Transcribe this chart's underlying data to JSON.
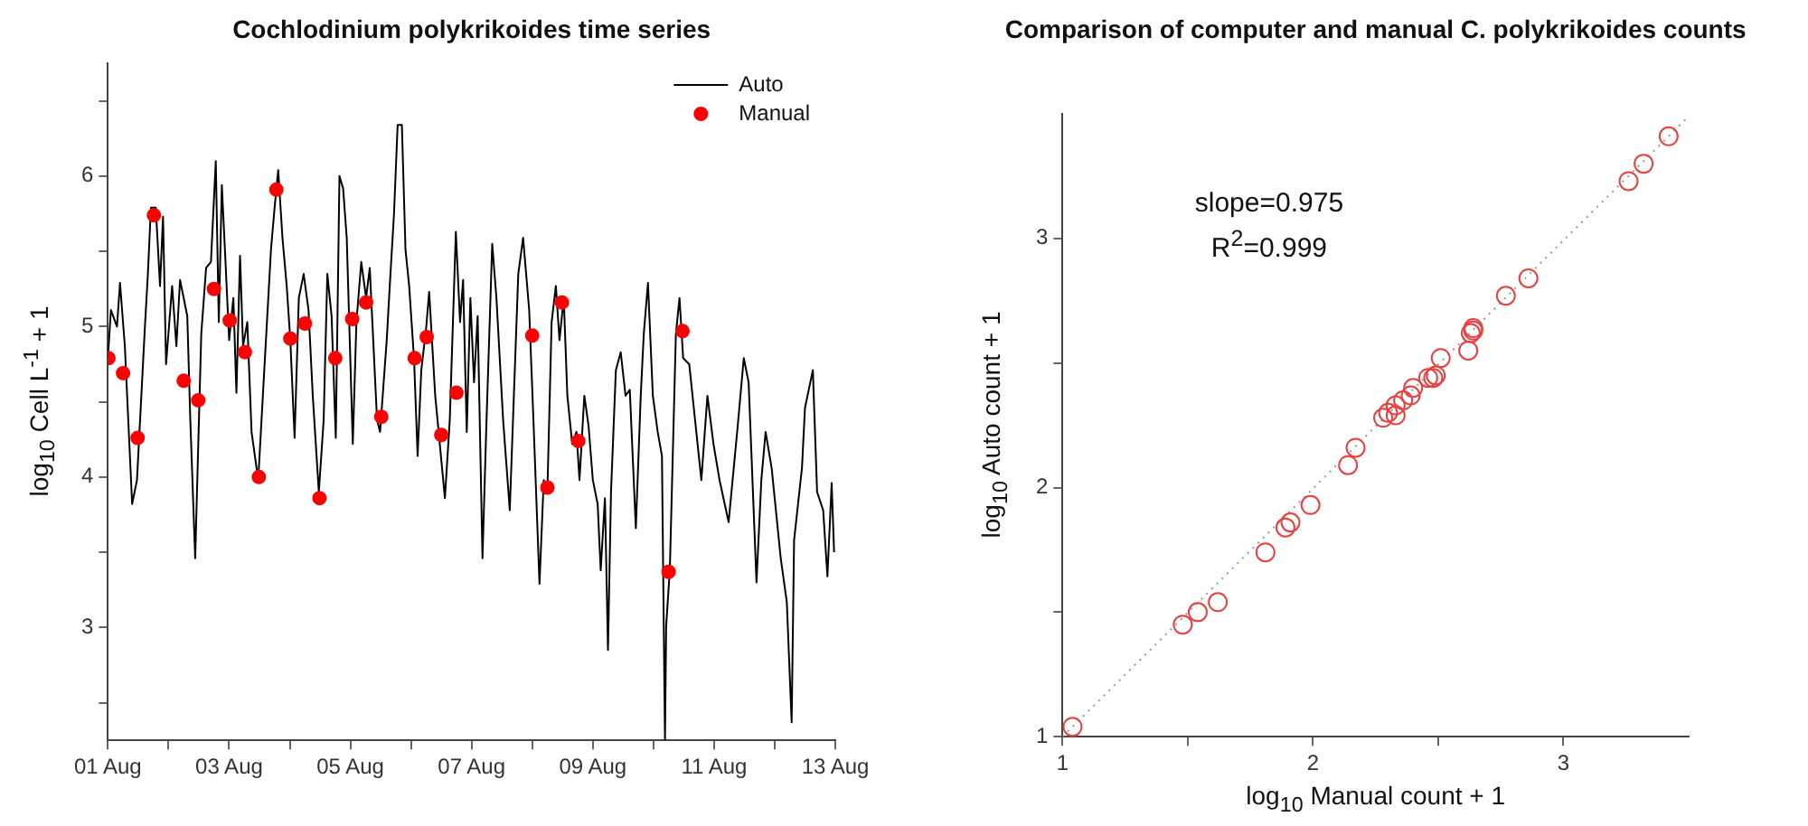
{
  "chart_data": [
    {
      "type": "line",
      "title": "Cochlodinium polykrikoides time series",
      "ylabel": "log$_{10}$ Cell L$^{-1}$ + 1",
      "xlim": [
        "--08-01",
        "--08-13"
      ],
      "xticks": [
        {
          "value": "--08-01",
          "label": "01 Aug"
        },
        {
          "value": "--08-02",
          "label": null
        },
        {
          "value": "--08-03",
          "label": "03 Aug"
        },
        {
          "value": "--08-04",
          "label": null
        },
        {
          "value": "--08-05",
          "label": "05 Aug"
        },
        {
          "value": "--08-06",
          "label": null
        },
        {
          "value": "--08-07",
          "label": "07 Aug"
        },
        {
          "value": "--08-08",
          "label": null
        },
        {
          "value": "--08-09",
          "label": "09 Aug"
        },
        {
          "value": "--08-10",
          "label": null
        },
        {
          "value": "--08-11",
          "label": "11 Aug"
        },
        {
          "value": "--08-12",
          "label": null
        },
        {
          "value": "--08-13",
          "label": "13 Aug"
        }
      ],
      "ylim": [
        2.25,
        6.75
      ],
      "yticks": [
        {
          "value": 2.5,
          "label": null
        },
        3,
        {
          "value": 3.5,
          "label": null
        },
        4,
        {
          "value": 4.5,
          "label": null
        },
        5,
        {
          "value": 5.5,
          "label": null
        },
        6,
        {
          "value": 6.5,
          "label": null
        }
      ],
      "grid": false,
      "legend": "top right",
      "series": [
        {
          "name": "Auto",
          "color": "#000000",
          "marker": "none",
          "x": [
            "--08-01T00:00",
            "--08-01T01:12",
            "--08-01T03:36",
            "--08-01T04:48",
            "--08-01T06:43",
            "--08-01T09:36",
            "--08-01T11:31",
            "--08-01T14:38",
            "--08-01T15:50",
            "--08-01T17:02",
            "--08-01T18:58",
            "--08-01T20:38",
            "--08-01T21:50",
            "--08-01T23:02",
            "--08-02T01:26",
            "--08-02T03:07",
            "--08-02T04:34",
            "--08-02T07:26",
            "--08-02T08:38",
            "--08-02T10:34",
            "--08-02T12:58",
            "--08-02T14:53",
            "--08-02T16:48",
            "--08-02T18:43",
            "--08-02T19:55",
            "--08-02T21:07",
            "--08-02T22:34",
            "--08-03T00:00",
            "--08-03T01:41",
            "--08-03T02:53",
            "--08-03T04:19",
            "--08-03T05:31",
            "--08-03T07:12",
            "--08-03T08:53",
            "--08-03T11:31",
            "--08-03T13:55",
            "--08-03T16:34",
            "--08-03T18:00",
            "--08-03T19:26",
            "--08-03T21:07",
            "--08-03T22:48",
            "--08-04T00:14",
            "--08-04T01:55",
            "--08-04T03:36",
            "--08-04T05:31",
            "--08-04T07:26",
            "--08-04T09:07",
            "--08-04T11:31",
            "--08-04T13:26",
            "--08-04T14:53",
            "--08-04T16:34",
            "--08-04T18:14",
            "--08-04T19:41",
            "--08-04T21:07",
            "--08-04T22:34",
            "--08-05T00:58",
            "--08-05T02:24",
            "--08-05T04:19",
            "--08-05T06:14",
            "--08-05T07:41",
            "--08-05T10:34",
            "--08-05T11:46",
            "--08-05T14:24",
            "--08-05T15:36",
            "--08-05T17:17",
            "--08-05T18:43",
            "--08-05T20:24",
            "--08-05T21:50",
            "--08-05T23:17",
            "--08-06T01:12",
            "--08-06T02:38",
            "--08-06T04:05",
            "--08-06T06:00",
            "--08-06T07:12",
            "--08-06T09:36",
            "--08-06T13:26",
            "--08-06T15:22",
            "--08-06T17:46",
            "--08-06T19:26",
            "--08-06T20:38",
            "--08-06T22:05",
            "--08-06T23:31",
            "--08-07T00:58",
            "--08-07T02:24",
            "--08-07T04:19",
            "--08-07T05:46",
            "--08-07T08:10",
            "--08-07T09:50",
            "--08-07T12:29",
            "--08-07T15:07",
            "--08-07T16:34",
            "--08-07T18:29",
            "--08-07T20:24",
            "--08-07T22:48",
            "--08-08T00:29",
            "--08-08T02:53",
            "--08-08T04:34",
            "--08-08T06:00",
            "--08-08T07:41",
            "--08-08T09:22",
            "--08-08T10:48",
            "--08-08T12:29",
            "--08-08T13:55",
            "--08-08T15:50",
            "--08-08T17:31",
            "--08-08T18:43",
            "--08-08T20:38",
            "--08-08T22:19",
            "--08-09T00:00",
            "--08-09T01:55",
            "--08-09T03:07",
            "--08-09T04:48",
            "--08-09T06:00",
            "--08-09T07:12",
            "--08-09T09:07",
            "--08-09T11:02",
            "--08-09T12:58",
            "--08-09T14:38",
            "--08-09T17:02",
            "--08-09T18:58",
            "--08-09T20:10",
            "--08-09T21:50",
            "--08-09T23:46",
            "--08-10T01:41",
            "--08-10T03:22",
            "--08-10T04:34",
            "--08-10T05:02",
            "--08-10T06:29",
            "--08-10T08:53",
            "--08-10T10:19",
            "--08-10T11:46",
            "--08-10T14:10",
            "--08-10T18:58",
            "--08-10T21:22",
            "--08-10T23:46",
            "--08-11T02:10",
            "--08-11T05:46",
            "--08-11T09:22",
            "--08-11T11:46",
            "--08-11T13:41",
            "--08-11T16:48",
            "--08-11T18:43",
            "--08-11T20:24",
            "--08-11T22:48",
            "--08-12T02:24",
            "--08-12T04:48",
            "--08-12T06:43",
            "--08-12T07:41",
            "--08-12T10:48",
            "--08-12T12:00",
            "--08-12T15:07",
            "--08-12T16:48",
            "--08-12T19:12",
            "--08-12T20:53",
            "--08-12T22:34",
            "--08-12T23:31"
          ],
          "values": [
            4.79,
            5.11,
            5.0,
            5.29,
            4.87,
            3.82,
            3.98,
            4.99,
            5.35,
            5.79,
            5.79,
            5.27,
            5.73,
            4.75,
            5.27,
            4.87,
            5.31,
            5.07,
            4.38,
            3.46,
            4.95,
            5.39,
            5.43,
            6.1,
            5.03,
            5.94,
            5.43,
            4.91,
            5.19,
            4.56,
            5.47,
            4.87,
            5.03,
            4.3,
            3.98,
            4.71,
            5.51,
            5.79,
            6.04,
            5.59,
            5.27,
            4.91,
            4.26,
            5.19,
            5.35,
            5.11,
            4.54,
            3.9,
            4.38,
            5.35,
            5.07,
            4.26,
            6.0,
            5.92,
            5.59,
            4.22,
            5.03,
            5.43,
            5.19,
            5.39,
            4.38,
            4.3,
            4.91,
            5.27,
            5.75,
            6.34,
            6.34,
            5.51,
            5.27,
            4.79,
            4.14,
            4.71,
            4.99,
            5.23,
            4.54,
            3.86,
            4.38,
            5.63,
            5.03,
            5.31,
            4.3,
            5.19,
            4.63,
            5.07,
            3.46,
            4.3,
            5.55,
            5.19,
            4.38,
            3.78,
            4.46,
            5.35,
            5.59,
            5.11,
            4.38,
            3.29,
            3.98,
            3.9,
            5.03,
            5.27,
            4.91,
            5.19,
            4.54,
            4.22,
            4.3,
            3.98,
            4.54,
            4.34,
            3.98,
            3.82,
            3.38,
            3.86,
            2.85,
            3.9,
            4.71,
            4.83,
            4.54,
            4.58,
            3.66,
            4.54,
            4.95,
            5.29,
            4.54,
            4.3,
            4.14,
            2.25,
            3.01,
            3.38,
            4.95,
            5.19,
            4.79,
            4.75,
            3.98,
            4.54,
            4.22,
            3.98,
            3.7,
            4.34,
            4.79,
            4.63,
            3.3,
            3.98,
            4.3,
            4.06,
            3.46,
            3.17,
            2.37,
            3.58,
            4.06,
            4.46,
            4.71,
            3.9,
            3.78,
            3.34,
            3.96,
            3.5
          ]
        },
        {
          "name": "Manual",
          "type": "scatter",
          "color": "#ff0000",
          "marker": "circle",
          "x": [
            "--08-01T00:14",
            "--08-01T06:00",
            "--08-01T11:46",
            "--08-01T18:14",
            "--08-02T06:00",
            "--08-02T11:46",
            "--08-02T18:00",
            "--08-03T00:14",
            "--08-03T06:14",
            "--08-03T11:46",
            "--08-03T18:43",
            "--08-04T00:14",
            "--08-04T06:00",
            "--08-04T11:46",
            "--08-04T18:00",
            "--08-05T00:43",
            "--08-05T06:14",
            "--08-05T12:14",
            "--08-06T01:26",
            "--08-06T06:14",
            "--08-06T12:00",
            "--08-06T18:00",
            "--08-08T00:00",
            "--08-08T06:00",
            "--08-08T11:46",
            "--08-08T18:14",
            "--08-10T06:00",
            "--08-10T11:31"
          ],
          "values": [
            4.79,
            4.69,
            4.26,
            5.74,
            4.64,
            4.51,
            5.25,
            5.04,
            4.83,
            4.0,
            5.91,
            4.92,
            5.02,
            3.86,
            4.79,
            5.05,
            5.16,
            4.4,
            4.79,
            4.93,
            4.28,
            4.56,
            4.94,
            3.93,
            5.16,
            4.24,
            3.37,
            4.97
          ]
        }
      ]
    },
    {
      "type": "scatter",
      "title": "Comparison of computer and manual C. polykrikoides counts",
      "xlabel": "log$_{10}$ Manual count + 1",
      "ylabel": "log$_{10}$ Auto count + 1",
      "annotations": [
        "slope=0.975",
        "R$^{2}$=0.999"
      ],
      "xlim": [
        1,
        3.5
      ],
      "xticks": [
        1,
        {
          "value": 1.5,
          "label": null
        },
        2,
        {
          "value": 2.5,
          "label": null
        },
        3
      ],
      "ylim": [
        1,
        3.5
      ],
      "yticks": [
        1,
        {
          "value": 1.5,
          "label": null
        },
        2,
        {
          "value": 2.5,
          "label": null
        },
        3
      ],
      "grid": false,
      "series": [
        {
          "color": "#e84040",
          "marker": "circle",
          "x": [
            1.04,
            1.48,
            1.54,
            1.62,
            1.81,
            1.89,
            1.91,
            1.99,
            2.14,
            2.17,
            2.28,
            2.3,
            2.33,
            2.33,
            2.36,
            2.39,
            2.4,
            2.46,
            2.48,
            2.49,
            2.51,
            2.62,
            2.63,
            2.64,
            2.64,
            2.77,
            2.86,
            3.26,
            3.32,
            3.42
          ],
          "values": [
            1.04,
            1.45,
            1.5,
            1.54,
            1.74,
            1.84,
            1.86,
            1.93,
            2.09,
            2.16,
            2.28,
            2.3,
            2.29,
            2.33,
            2.35,
            2.37,
            2.4,
            2.44,
            2.44,
            2.45,
            2.52,
            2.55,
            2.62,
            2.64,
            2.63,
            2.77,
            2.84,
            3.23,
            3.3,
            3.41
          ]
        },
        {
          "type": "line",
          "color": "#999999",
          "marker": "none",
          "line_style": "dotted",
          "x": [
            1,
            3.5
          ],
          "values": [
            1,
            3.49
          ]
        }
      ]
    }
  ]
}
